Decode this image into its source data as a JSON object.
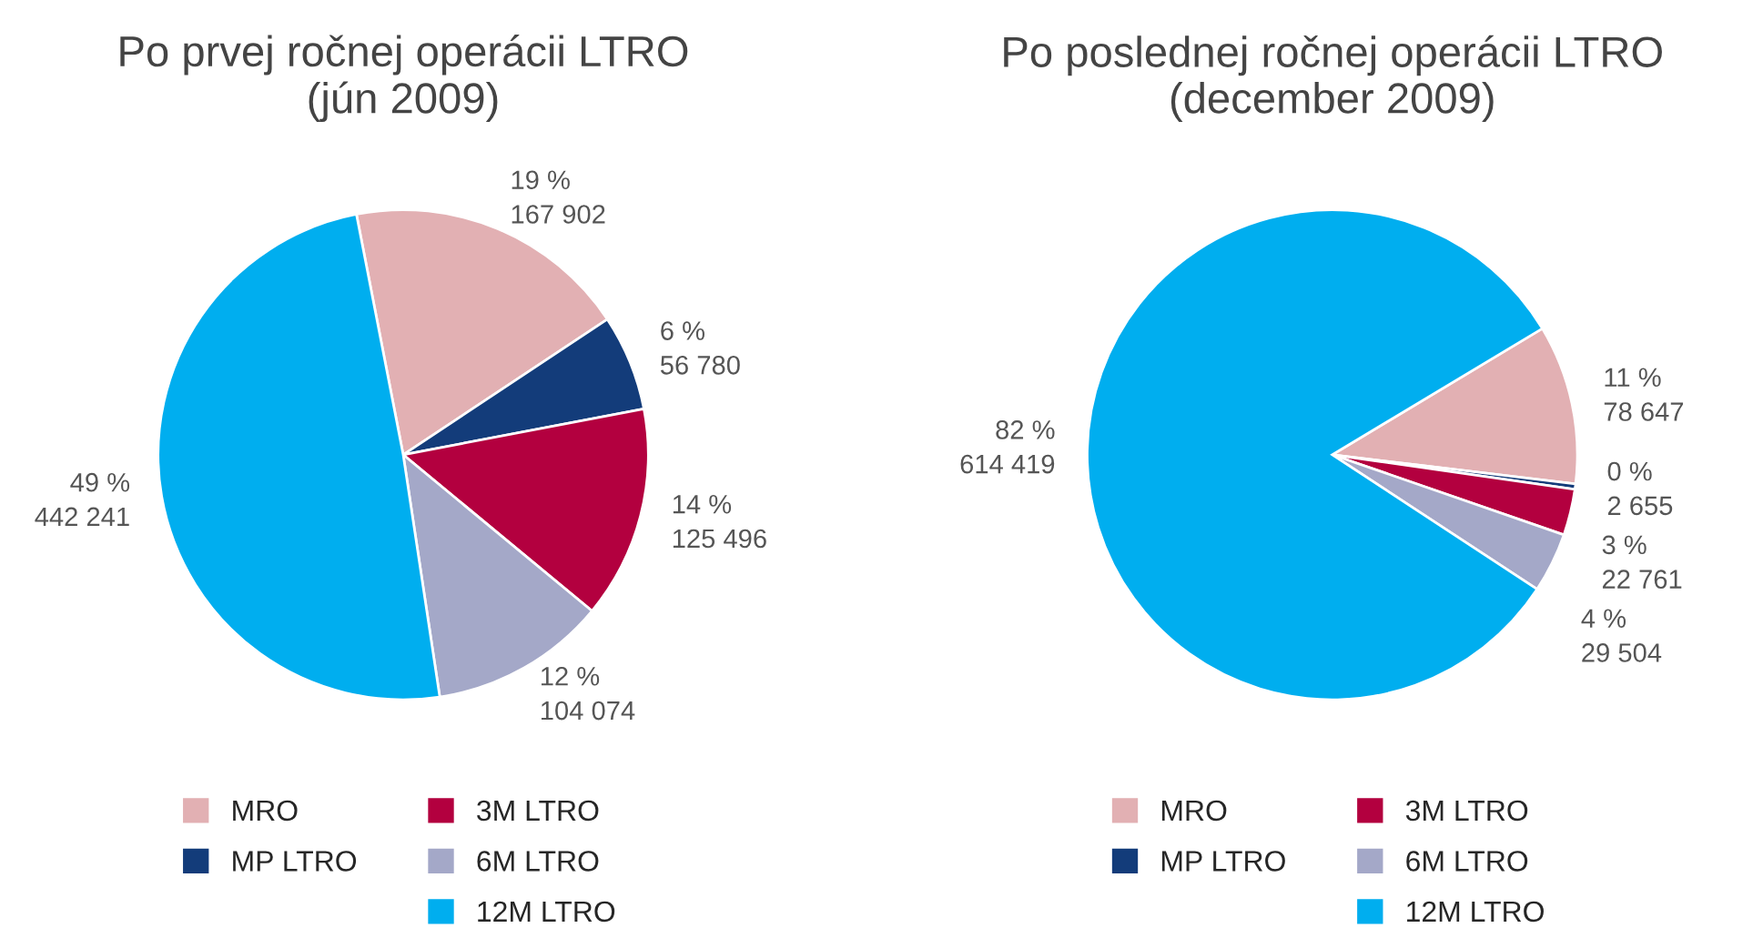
{
  "chart_data": [
    {
      "type": "pie",
      "title": "Po prvej ročnej operácii LTRO\n(jún 2009)",
      "categories": [
        "MRO",
        "MP LTRO",
        "3M LTRO",
        "6M LTRO",
        "12M LTRO"
      ],
      "values": [
        167902,
        56780,
        125496,
        104074,
        442241
      ],
      "value_labels": [
        "19 %\n167 902",
        "6 %\n56 780",
        "14 %\n125 496",
        "12 %\n104 074",
        "49 %\n442 241"
      ],
      "colors": [
        "#e2b0b3",
        "#133c7a",
        "#b3003f",
        "#a4a8c8",
        "#00aeef"
      ],
      "legend": "bottom"
    },
    {
      "type": "pie",
      "title": "Po poslednej ročnej operácii LTRO\n(december 2009)",
      "categories": [
        "MRO",
        "MP LTRO",
        "3M LTRO",
        "6M LTRO",
        "12M LTRO"
      ],
      "values": [
        78647,
        2655,
        22761,
        29504,
        614419
      ],
      "value_labels": [
        "11 %\n78 647",
        "0 %\n2 655",
        "3 %\n22 761",
        "4 %\n29 504",
        "82 %\n614 419"
      ],
      "colors": [
        "#e2b0b3",
        "#133c7a",
        "#b3003f",
        "#a4a8c8",
        "#00aeef"
      ],
      "legend": "bottom"
    }
  ]
}
